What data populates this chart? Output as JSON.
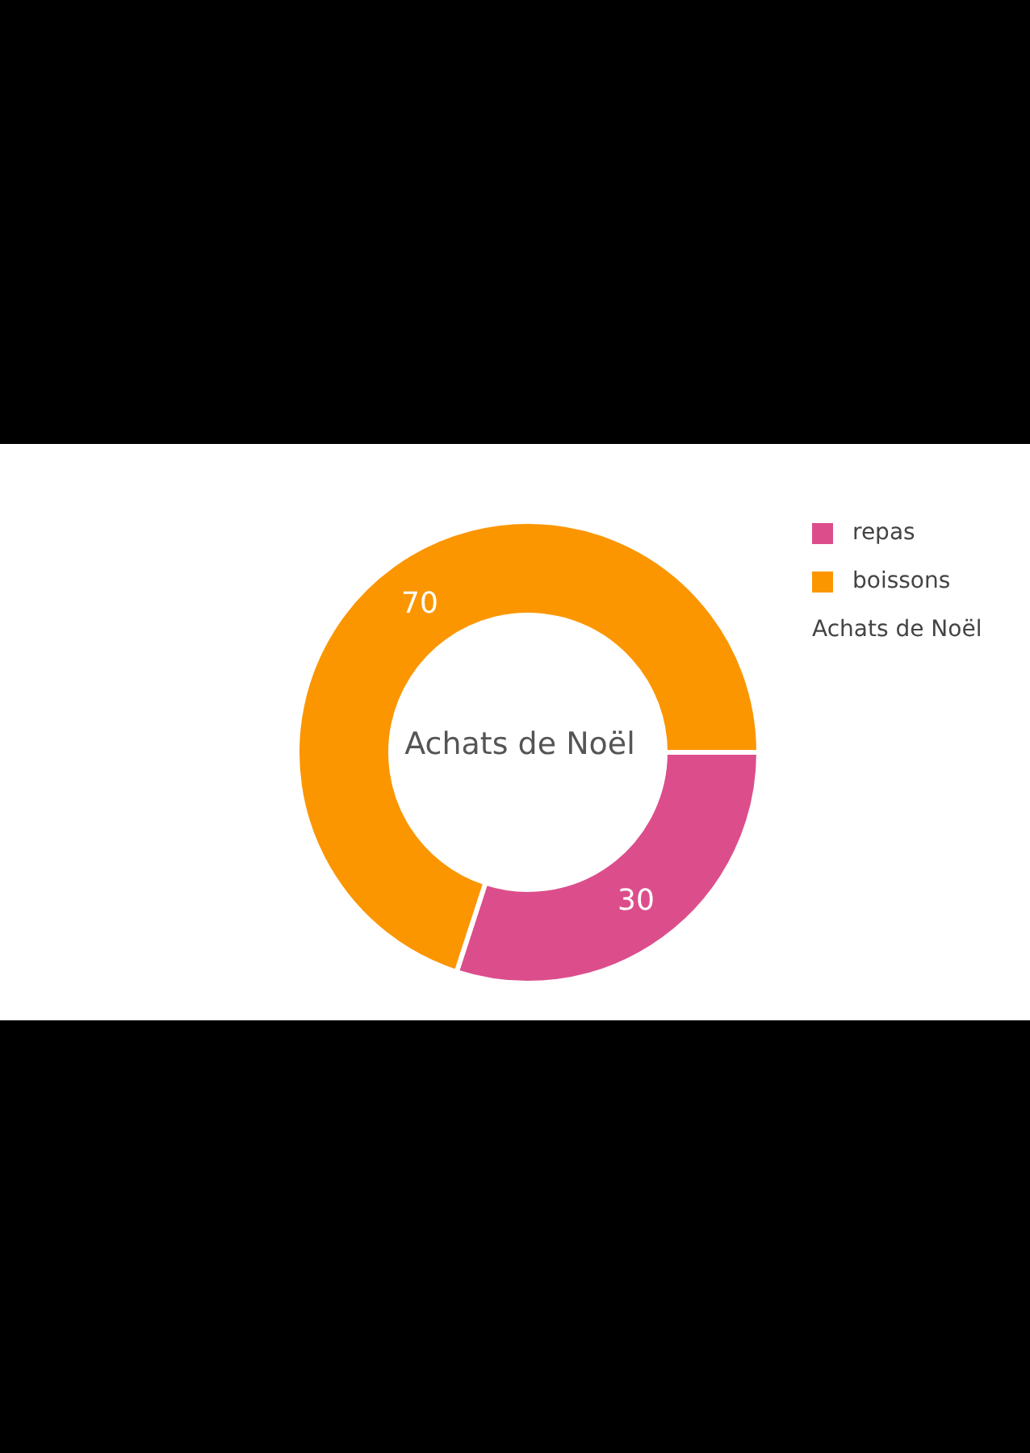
{
  "chart_data": {
    "type": "donut",
    "title": "Achats de Noël",
    "categories": [
      "repas",
      "boissons"
    ],
    "values": [
      30,
      70
    ],
    "colors": [
      "#dc4e8b",
      "#fb9600"
    ],
    "data_labels": true,
    "legend": "top right",
    "legend_title": "Achats de Noël"
  }
}
